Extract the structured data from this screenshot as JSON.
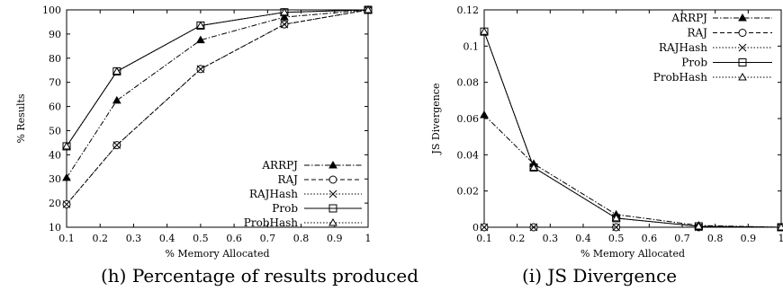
{
  "chart_data": [
    {
      "type": "line",
      "caption": "(h) Percentage of results produced",
      "xlabel": "% Memory Allocated",
      "ylabel": "% Results",
      "xlim": [
        0.1,
        1
      ],
      "ylim": [
        10,
        100
      ],
      "xticks": [
        "0.1",
        "0.2",
        "0.3",
        "0.4",
        "0.5",
        "0.6",
        "0.7",
        "0.8",
        "0.9",
        "1"
      ],
      "yticks": [
        "10",
        "20",
        "30",
        "40",
        "50",
        "60",
        "70",
        "80",
        "90",
        "100"
      ],
      "legend_position": "bottom-right",
      "grid": false,
      "x": [
        0.1,
        0.25,
        0.5,
        0.75,
        1.0
      ],
      "series": [
        {
          "name": "ARRPJ",
          "values": [
            30.5,
            62.5,
            87.5,
            97,
            100
          ],
          "marker": "filled-triangle",
          "dash": "dashdot"
        },
        {
          "name": "RAJ",
          "values": [
            19.5,
            44,
            75.5,
            94,
            100
          ],
          "marker": "circle",
          "dash": "dashed"
        },
        {
          "name": "RAJHash",
          "values": [
            19.5,
            44,
            75.5,
            94,
            100
          ],
          "marker": "x",
          "dash": "dotted"
        },
        {
          "name": "Prob",
          "values": [
            43.5,
            74.5,
            93.5,
            99,
            100
          ],
          "marker": "square",
          "dash": "solid"
        },
        {
          "name": "ProbHash",
          "values": [
            43.5,
            74.5,
            93.5,
            99,
            100
          ],
          "marker": "triangle",
          "dash": "dotted"
        }
      ]
    },
    {
      "type": "line",
      "caption": "(i) JS Divergence",
      "xlabel": "% Memory Allocated",
      "ylabel": "JS Divergence",
      "xlim": [
        0.1,
        1
      ],
      "ylim": [
        0,
        0.12
      ],
      "xticks": [
        "0.1",
        "0.2",
        "0.3",
        "0.4",
        "0.5",
        "0.6",
        "0.7",
        "0.8",
        "0.9",
        "1"
      ],
      "yticks": [
        "0",
        "0.02",
        "0.04",
        "0.06",
        "0.08",
        "0.1",
        "0.12"
      ],
      "legend_position": "top-right",
      "grid": false,
      "x": [
        0.1,
        0.25,
        0.5,
        0.75,
        1.0
      ],
      "series": [
        {
          "name": "ARRPJ",
          "values": [
            0.062,
            0.035,
            0.007,
            0.001,
            0
          ],
          "marker": "filled-triangle",
          "dash": "dashdot"
        },
        {
          "name": "RAJ",
          "values": [
            0,
            0,
            0,
            0,
            0
          ],
          "marker": "circle",
          "dash": "dashed"
        },
        {
          "name": "RAJHash",
          "values": [
            0,
            0,
            0,
            0,
            0
          ],
          "marker": "x",
          "dash": "dotted"
        },
        {
          "name": "Prob",
          "values": [
            0.108,
            0.033,
            0.005,
            0.0005,
            0
          ],
          "marker": "square",
          "dash": "solid"
        },
        {
          "name": "ProbHash",
          "values": [
            0.108,
            0.033,
            0.005,
            0.0005,
            0
          ],
          "marker": "triangle",
          "dash": "dotted"
        }
      ]
    }
  ]
}
